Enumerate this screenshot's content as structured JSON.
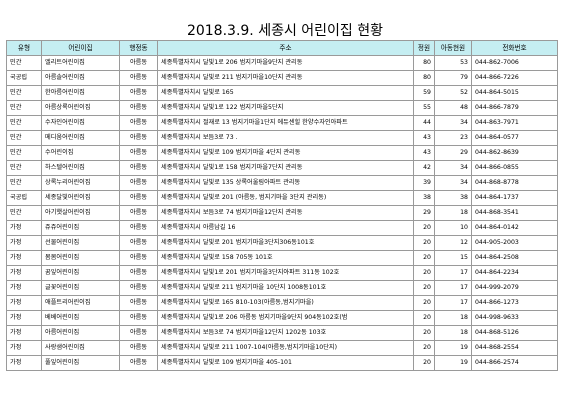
{
  "title": "2018.3.9. 세종시 어린이집 현황",
  "columns": [
    "유형",
    "어린이집",
    "행정동",
    "주소",
    "정원",
    "아동현원",
    "전화번호"
  ],
  "rows": [
    [
      "민간",
      "엘리트어린이집",
      "아름동",
      "세종특별자치시  달빛1로 206 범지기마을9단지 관리동",
      "80",
      "53",
      "044-862-7006"
    ],
    [
      "국공립",
      "아름솔어린이집",
      "아름동",
      "세종특별자치시  달빛로 211 범지기마을10단지 관리동",
      "80",
      "79",
      "044-866-7226"
    ],
    [
      "민간",
      "한아름어린이집",
      "아름동",
      "세종특별자치시  달빛로 165",
      "59",
      "52",
      "044-864-5015"
    ],
    [
      "민간",
      "아름상록어린이집",
      "아름동",
      "세종특별자치시  달빛1로 122 범지기마을5단지",
      "55",
      "48",
      "044-866-7879"
    ],
    [
      "민간",
      "수자인어린이집",
      "아름동",
      "세종특별자치시  절재로 13 범지기마을1단지 에듀센힐 한양수자인아파트",
      "44",
      "34",
      "044-863-7971"
    ],
    [
      "민간",
      "메디움어린이집",
      "아름동",
      "세종특별자치시  보듬3로 73 .",
      "43",
      "23",
      "044-864-0577"
    ],
    [
      "민간",
      "수어린이집",
      "아름동",
      "세종특별자치시  달빛로 109 범지기마을 4단지 관리동",
      "43",
      "29",
      "044-862-8639"
    ],
    [
      "민간",
      "하스텔어린이집",
      "아름동",
      "세종특별자치시  달빛1로 158 범지기마을7단지 관리동",
      "42",
      "34",
      "044-866-0855"
    ],
    [
      "민간",
      "상록누리어린이집",
      "아름동",
      "세종특별자치시  달빛로 135 상록어울림아파트 관리동",
      "39",
      "34",
      "044-868-8778"
    ],
    [
      "국공립",
      "세종달빛어린이집",
      "아름동",
      "세종특별자치시  달빛로 201 (아름동, 범지기마을 3단지 관리동)",
      "38",
      "38",
      "044-864-1737"
    ],
    [
      "민간",
      "아기햇살어린이집",
      "아름동",
      "세종특별자치시  보듬3로 74 범지기마을12단지 관리동",
      "29",
      "18",
      "044-868-3541"
    ],
    [
      "가정",
      "쥬쥬어린이집",
      "아름동",
      "세종특별자치시  아름남길 16",
      "20",
      "10",
      "044-864-0142"
    ],
    [
      "가정",
      "선물어린이집",
      "아름동",
      "세종특별자치시  달빛로 201 범지기마을3단지306동101호",
      "20",
      "12",
      "044-905-2003"
    ],
    [
      "가정",
      "봄봄어린이집",
      "아름동",
      "세종특별자치시  달빛로 158 705동 101호",
      "20",
      "15",
      "044-864-2508"
    ],
    [
      "가정",
      "꿈잎어린이집",
      "아름동",
      "세종특별자치시  달빛1로 201 범지기마을3단지아파트 311동 102호",
      "20",
      "17",
      "044-864-2234"
    ],
    [
      "가정",
      "글꽃어린이집",
      "아름동",
      "세종특별자치시  달빛로 211 범지기마을 10단지 1008동101호",
      "20",
      "17",
      "044-999-2079"
    ],
    [
      "가정",
      "애플트리어린이집",
      "아름동",
      "세종특별자치시  달빛로 165 810-103(아름동,범지기마을)",
      "20",
      "17",
      "044-866-1273"
    ],
    [
      "가정",
      "베베어린이집",
      "아름동",
      "세종특별자치시  달빛1로 206 아름동 범지기마을9단지 904동102호(범",
      "20",
      "18",
      "044-998-9633"
    ],
    [
      "가정",
      "아름어린이집",
      "아름동",
      "세종특별자치시  보듬3로 74 범지기마을12단지 1202동 103호",
      "20",
      "18",
      "044-868-5126"
    ],
    [
      "가정",
      "사랑샘어린이집",
      "아름동",
      "세종특별자치시  달빛로 211 1007-104(아름동,범지기마을10단지)",
      "20",
      "19",
      "044-868-2554"
    ],
    [
      "가정",
      "풀잎어린이집",
      "아름동",
      "세종특별자치시  달빛로 109 범지기마을 405-101",
      "20",
      "19",
      "044-866-2574"
    ]
  ]
}
